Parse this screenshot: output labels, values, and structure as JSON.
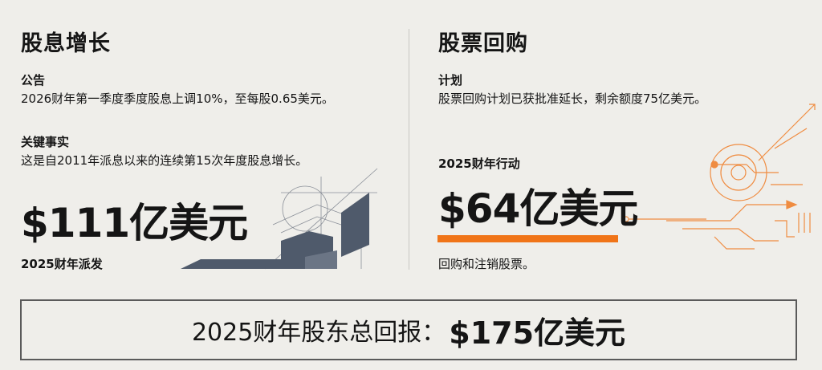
{
  "dividend": {
    "title": "股息增长",
    "announcement_label": "公告",
    "announcement_text": "2026财年第一季度季度股息上调10%，至每股0.65美元。",
    "fact_label": "关键事实",
    "fact_text": "这是自2011年派息以来的连续第15次年度股息增长。",
    "amount": "$111亿美元",
    "amount_caption": "2025财年派发"
  },
  "buyback": {
    "title": "股票回购",
    "plan_label": "计划",
    "plan_text": "股票回购计划已获批准延长，剩余额度75亿美元。",
    "action_label": "2025财年行动",
    "amount": "$64亿美元",
    "amount_caption": "回购和注销股票。"
  },
  "total": {
    "label": "2025财年股东总回报：",
    "value": "$175亿美元"
  },
  "colors": {
    "accent": "#f07418",
    "building": "#4f5a6b",
    "background": "#efeeea"
  }
}
